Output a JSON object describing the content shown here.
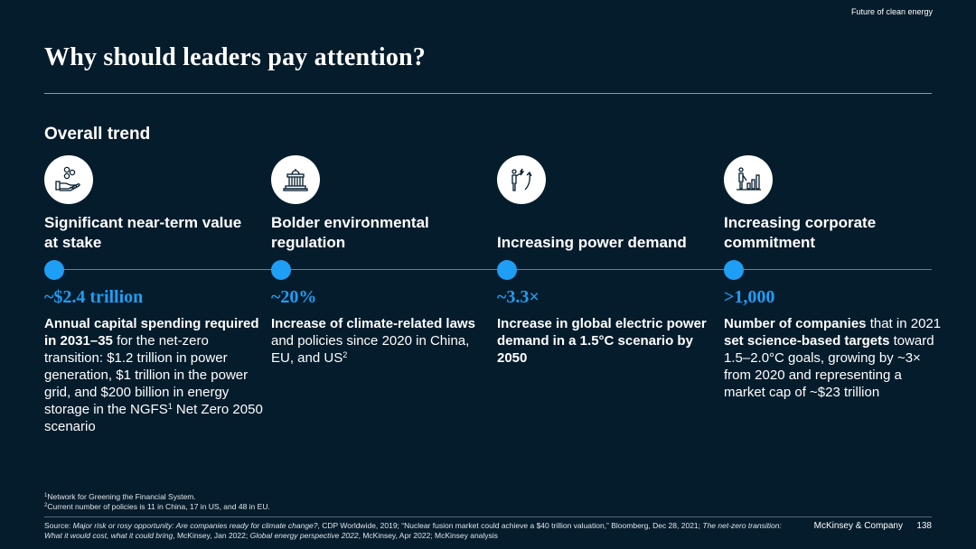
{
  "header": {
    "eyebrow": "Future of clean energy",
    "title": "Why should leaders pay attention?",
    "section": "Overall trend"
  },
  "columns": [
    {
      "icon": "money-hand-icon",
      "heading": "Significant near-term value at stake",
      "metric": "~$2.4 trillion",
      "desc_parts": [
        {
          "text": "Annual capital spending required in 2031–35",
          "bold": true
        },
        {
          "text": " for the net-zero transition: $1.2 trillion in power generation, $1 trillion in the power grid, and $200 billion in energy storage in the NGFS"
        },
        {
          "text": "1",
          "sup": true
        },
        {
          "text": " Net Zero 2050 scenario"
        }
      ]
    },
    {
      "icon": "government-building-icon",
      "heading": "Bolder environmental regulation",
      "metric": "~20%",
      "desc_parts": [
        {
          "text": "Increase of climate-related laws",
          "bold": true
        },
        {
          "text": " and policies since 2020 in China, EU, and US"
        },
        {
          "text": "2",
          "sup": true
        }
      ]
    },
    {
      "icon": "power-demand-icon",
      "heading": "Increasing power demand",
      "metric": "~3.3×",
      "desc_parts": [
        {
          "text": "Increase in global electric power demand in a 1.5°C scenario by 2050",
          "bold": true
        }
      ]
    },
    {
      "icon": "corporate-growth-chart-icon",
      "heading": "Increasing corporate commitment",
      "metric": ">1,000",
      "desc_parts": [
        {
          "text": "Number of companies",
          "bold": true
        },
        {
          "text": " that in 2021 "
        },
        {
          "text": "set science-based targets",
          "bold": true
        },
        {
          "text": " toward 1.5–2.0°C goals, growing by ~3× from 2020 and representing a market cap of ~$23 trillion"
        }
      ]
    }
  ],
  "footnotes": [
    {
      "mark": "1",
      "text": "Network for Greening the Financial System."
    },
    {
      "mark": "2",
      "text": "Current number of policies is 11 in China, 17 in US, and 48 in EU."
    }
  ],
  "source_parts": [
    {
      "text": "Source: "
    },
    {
      "text": "Major risk or rosy opportunity: Are companies ready for climate change?",
      "italic": true
    },
    {
      "text": ", CDP Worldwide, 2019; “Nuclear fusion market could achieve a $40 trillion valuation,” Bloomberg, Dec 28, 2021; "
    },
    {
      "text": "The net-zero transition: What it would cost, what it could bring",
      "italic": true
    },
    {
      "text": ", McKinsey, Jan 2022; "
    },
    {
      "text": "Global energy perspective 2022",
      "italic": true
    },
    {
      "text": ", McKinsey, Apr 2022; McKinsey analysis"
    }
  ],
  "footer": {
    "brand": "McKinsey & Company",
    "page": "138"
  }
}
